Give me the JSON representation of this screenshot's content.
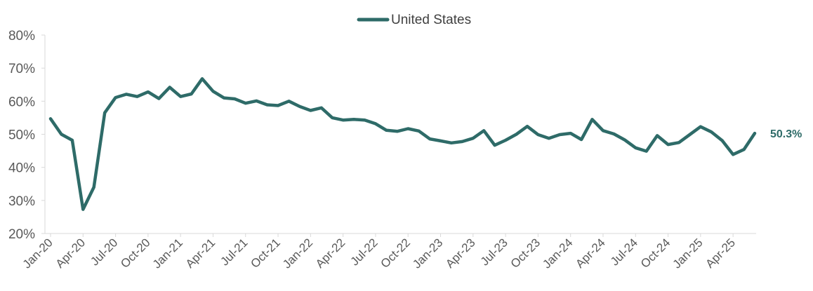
{
  "chart_data": {
    "type": "line",
    "legend": {
      "position": "top-center"
    },
    "grid": false,
    "ylim": [
      20,
      80
    ],
    "yticks": [
      "80%",
      "70%",
      "60%",
      "50%",
      "40%",
      "30%",
      "20%"
    ],
    "ytick_values": [
      80,
      70,
      60,
      50,
      40,
      30,
      20
    ],
    "xtick_labels": [
      "Jan-20",
      "Apr-20",
      "Jul-20",
      "Oct-20",
      "Jan-21",
      "Apr-21",
      "Jul-21",
      "Oct-21",
      "Jan-22",
      "Apr-22",
      "Jul-22",
      "Oct-22",
      "Jan-23",
      "Apr-23",
      "Jul-23",
      "Oct-23",
      "Jan-24",
      "Apr-24",
      "Jul-24",
      "Oct-24",
      "Jan-25",
      "Apr-25"
    ],
    "x": [
      "Jan-20",
      "Feb-20",
      "Mar-20",
      "Apr-20",
      "May-20",
      "Jun-20",
      "Jul-20",
      "Aug-20",
      "Sep-20",
      "Oct-20",
      "Nov-20",
      "Dec-20",
      "Jan-21",
      "Feb-21",
      "Mar-21",
      "Apr-21",
      "May-21",
      "Jun-21",
      "Jul-21",
      "Aug-21",
      "Sep-21",
      "Oct-21",
      "Nov-21",
      "Dec-21",
      "Jan-22",
      "Feb-22",
      "Mar-22",
      "Apr-22",
      "May-22",
      "Jun-22",
      "Jul-22",
      "Aug-22",
      "Sep-22",
      "Oct-22",
      "Nov-22",
      "Dec-22",
      "Jan-23",
      "Feb-23",
      "Mar-23",
      "Apr-23",
      "May-23",
      "Jun-23",
      "Jul-23",
      "Aug-23",
      "Sep-23",
      "Oct-23",
      "Nov-23",
      "Dec-23",
      "Jan-24",
      "Feb-24",
      "Mar-24",
      "Apr-24",
      "May-24",
      "Jun-24",
      "Jul-24",
      "Aug-24",
      "Sep-24",
      "Oct-24",
      "Nov-24",
      "Dec-24",
      "Jan-25",
      "Feb-25",
      "Mar-25",
      "Apr-25",
      "May-25",
      "Jun-25"
    ],
    "series": [
      {
        "name": "United States",
        "color": "#2e6b68",
        "values": [
          54.7,
          50.0,
          48.2,
          27.3,
          34.0,
          56.5,
          61.1,
          62.1,
          61.4,
          62.8,
          60.8,
          64.2,
          61.4,
          62.2,
          66.8,
          63.0,
          61.0,
          60.7,
          59.4,
          60.1,
          58.9,
          58.7,
          60.0,
          58.4,
          57.2,
          58.0,
          55.0,
          54.3,
          54.5,
          54.3,
          53.2,
          51.2,
          50.9,
          51.7,
          51.0,
          48.6,
          48.0,
          47.4,
          47.8,
          48.8,
          51.1,
          46.7,
          48.2,
          50.0,
          52.4,
          49.9,
          48.8,
          49.9,
          50.3,
          48.4,
          54.5,
          51.1,
          50.1,
          48.3,
          45.9,
          44.9,
          49.6,
          46.9,
          47.5,
          49.9,
          52.3,
          50.7,
          48.1,
          43.9,
          45.4,
          50.3
        ]
      }
    ],
    "end_label": "50.3%",
    "end_label_color": "#2e6b68"
  }
}
